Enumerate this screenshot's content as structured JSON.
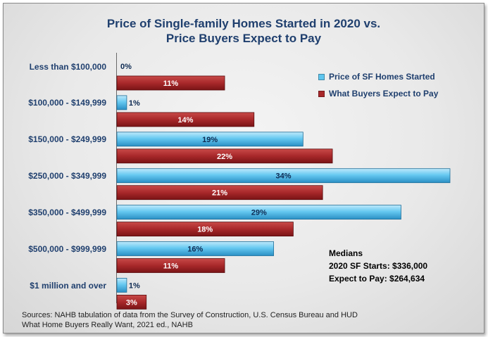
{
  "chart_data": {
    "type": "bar",
    "orientation": "horizontal",
    "title_line1": "Price of Single-family Homes Started in 2020 vs.",
    "title_line2": "Price Buyers Expect to Pay",
    "categories": [
      "Less than $100,000",
      "$100,000 - $149,999",
      "$150,000 - $249,999",
      "$250,000 - $349,999",
      "$350,000 - $499,999",
      "$500,000 - $999,999",
      "$1 million and over"
    ],
    "series": [
      {
        "name": "Price of SF Homes Started",
        "values": [
          0,
          1,
          19,
          34,
          29,
          16,
          1
        ],
        "labels": [
          "0%",
          "1%",
          "19%",
          "34%",
          "29%",
          "16%",
          "1%"
        ],
        "color": "#5fc6ef"
      },
      {
        "name": "What Buyers Expect to Pay",
        "values": [
          11,
          14,
          22,
          21,
          18,
          11,
          3
        ],
        "labels": [
          "11%",
          "14%",
          "22%",
          "21%",
          "18%",
          "11%",
          "3%"
        ],
        "color": "#a8282a"
      }
    ],
    "xlim": [
      0,
      34
    ],
    "legend_position": "top-right",
    "grid": false
  },
  "medians": {
    "heading": "Medians",
    "starts": "2020 SF Starts: $336,000",
    "expect": "Expect to Pay: $264,634"
  },
  "source": {
    "line1": "Sources: NAHB tabulation of data from the Survey of Construction, U.S. Census Bureau and HUD",
    "line2": "What Home Buyers Really Want, 2021 ed., NAHB"
  }
}
